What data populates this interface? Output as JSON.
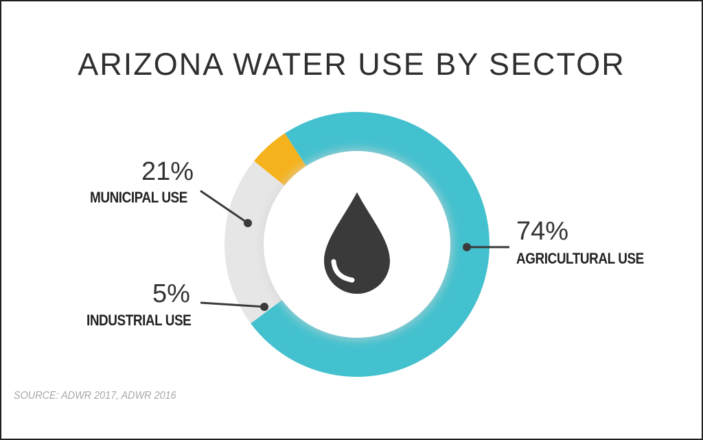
{
  "chart_data": {
    "type": "pie",
    "title": "ARIZONA WATER USE BY SECTOR",
    "categories": [
      "AGRICULTURAL USE",
      "MUNICIPAL USE",
      "INDUSTRIAL USE"
    ],
    "values": [
      74,
      21,
      5
    ],
    "value_labels": [
      "74%",
      "21%",
      "5%"
    ],
    "colors": [
      "#44c1ce",
      "#e6e6e6",
      "#f6b21c"
    ],
    "center_icon": "water-drop-icon",
    "source": "SOURCE: ADWR 2017, ADWR 2016"
  }
}
